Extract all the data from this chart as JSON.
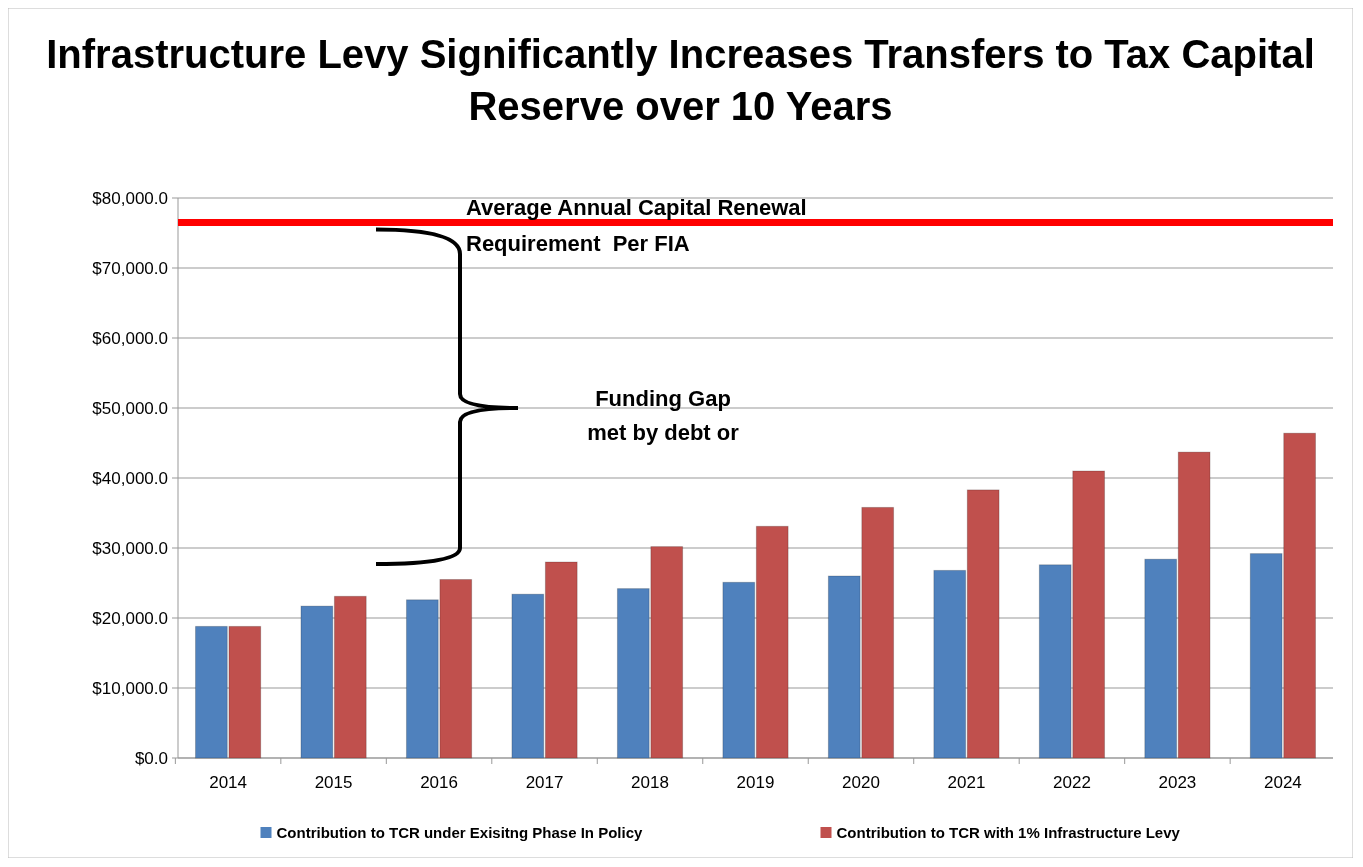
{
  "chart_data": {
    "type": "bar",
    "title": "Infrastructure Levy Significantly Increases Transfers to Tax Capital Reserve over 10 Years",
    "categories": [
      "2014",
      "2015",
      "2016",
      "2017",
      "2018",
      "2019",
      "2020",
      "2021",
      "2022",
      "2023",
      "2024"
    ],
    "series": [
      {
        "name": "Contribution to TCR under Exisitng Phase In Policy",
        "color": "#4f81bd",
        "values": [
          18800,
          21700,
          22600,
          23400,
          24200,
          25100,
          26000,
          26800,
          27600,
          28400,
          29200
        ]
      },
      {
        "name": "Contribution to TCR with 1% Infrastructure Levy",
        "color": "#c0504d",
        "values": [
          18800,
          23100,
          25500,
          28000,
          30200,
          33100,
          35800,
          38300,
          41000,
          43700,
          46400
        ]
      }
    ],
    "ylim": [
      0,
      80000
    ],
    "yticks": [
      {
        "value": 0,
        "label": "$0.0"
      },
      {
        "value": 10000,
        "label": "$10,000.0"
      },
      {
        "value": 20000,
        "label": "$20,000.0"
      },
      {
        "value": 30000,
        "label": "$30,000.0"
      },
      {
        "value": 40000,
        "label": "$40,000.0"
      },
      {
        "value": 50000,
        "label": "$50,000.0"
      },
      {
        "value": 60000,
        "label": "$60,000.0"
      },
      {
        "value": 70000,
        "label": "$70,000.0"
      },
      {
        "value": 80000,
        "label": "$80,000.0"
      }
    ],
    "grid": "y",
    "legend": "bottom",
    "ref_lines": [
      {
        "axis": "y",
        "value": 76500,
        "label": "Average Annual Capital Renewal Requirement  Per FIA",
        "color": "#ff0000"
      }
    ],
    "annotations": [
      "Funding Gap met by debt or"
    ]
  }
}
